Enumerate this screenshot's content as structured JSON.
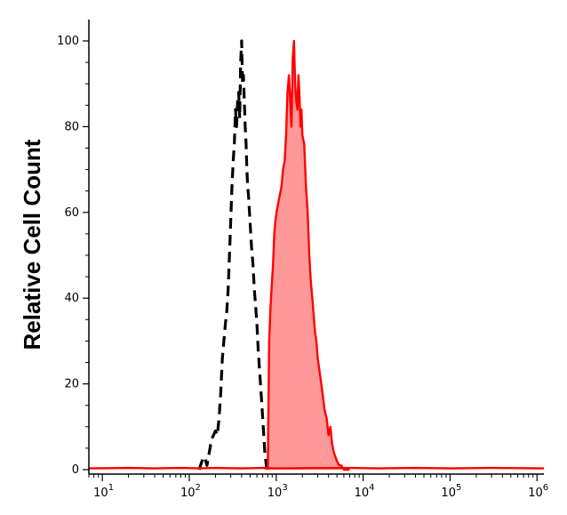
{
  "chart_data": {
    "type": "area",
    "title": "",
    "xlabel": "",
    "ylabel": "Relative Cell Count",
    "x_scale": "log",
    "xlim": [
      7,
      1200000
    ],
    "ylim": [
      0,
      100
    ],
    "grid": false,
    "legend": "none",
    "x_ticks": [
      {
        "value": 10,
        "base": "10",
        "exp": "1"
      },
      {
        "value": 100,
        "base": "10",
        "exp": "2"
      },
      {
        "value": 1000,
        "base": "10",
        "exp": "3"
      },
      {
        "value": 10000,
        "base": "10",
        "exp": "4"
      },
      {
        "value": 100000,
        "base": "10",
        "exp": "5"
      },
      {
        "value": 1000000,
        "base": "10",
        "exp": "6"
      }
    ],
    "y_ticks": [
      0,
      20,
      40,
      60,
      80,
      100
    ],
    "series": [
      {
        "style": "dashed",
        "color": "#000000",
        "filled": false,
        "x": [
          130,
          140,
          150,
          160,
          170,
          180,
          190,
          200,
          210,
          220,
          230,
          240,
          250,
          260,
          270,
          280,
          290,
          300,
          310,
          320,
          330,
          340,
          350,
          360,
          370,
          380,
          390,
          400,
          410,
          420,
          430,
          440,
          450,
          460,
          470,
          480,
          500,
          520,
          540,
          560,
          580,
          600,
          620,
          640,
          660,
          680,
          700,
          720,
          740,
          760,
          780
        ],
        "y": [
          0,
          2,
          3,
          1,
          4,
          7,
          8,
          9,
          8,
          12,
          18,
          26,
          30,
          34,
          37,
          42,
          50,
          58,
          66,
          72,
          76,
          84,
          80,
          86,
          88,
          82,
          95,
          100,
          90,
          92,
          86,
          80,
          76,
          70,
          66,
          64,
          58,
          52,
          48,
          42,
          38,
          34,
          28,
          24,
          20,
          16,
          12,
          8,
          4,
          2,
          0
        ]
      },
      {
        "style": "solid",
        "color": "#ff0000",
        "fill": "#ff9999",
        "filled": true,
        "x": [
          800,
          830,
          860,
          890,
          920,
          950,
          980,
          1010,
          1050,
          1100,
          1150,
          1200,
          1250,
          1300,
          1350,
          1400,
          1450,
          1500,
          1550,
          1600,
          1650,
          1700,
          1750,
          1800,
          1850,
          1900,
          1950,
          2000,
          2100,
          2200,
          2300,
          2400,
          2500,
          2600,
          2700,
          2800,
          2900,
          3000,
          3200,
          3400,
          3600,
          3800,
          4000,
          4200,
          4400,
          4600,
          4800,
          5000,
          5300,
          5600,
          6000,
          6500,
          7000
        ],
        "y": [
          0,
          30,
          38,
          43,
          48,
          55,
          58,
          60,
          62,
          64,
          66,
          70,
          72,
          78,
          88,
          92,
          86,
          80,
          96,
          100,
          90,
          86,
          84,
          92,
          88,
          80,
          84,
          78,
          76,
          66,
          60,
          50,
          44,
          40,
          36,
          32,
          30,
          26,
          22,
          18,
          14,
          12,
          8,
          10,
          6,
          4,
          3,
          2,
          1,
          1,
          0,
          0,
          0
        ]
      },
      {
        "style": "solid",
        "color": "#ff0000",
        "filled": false,
        "x": [
          7,
          20,
          40,
          80,
          130,
          200,
          400,
          700,
          800,
          7000,
          15000,
          40000,
          100000,
          300000,
          1200000
        ],
        "y": [
          0.3,
          0.4,
          0.3,
          0.4,
          0.3,
          0.4,
          0.3,
          0.4,
          0.3,
          0.4,
          0.3,
          0.4,
          0.3,
          0.4,
          0.3
        ]
      }
    ]
  }
}
